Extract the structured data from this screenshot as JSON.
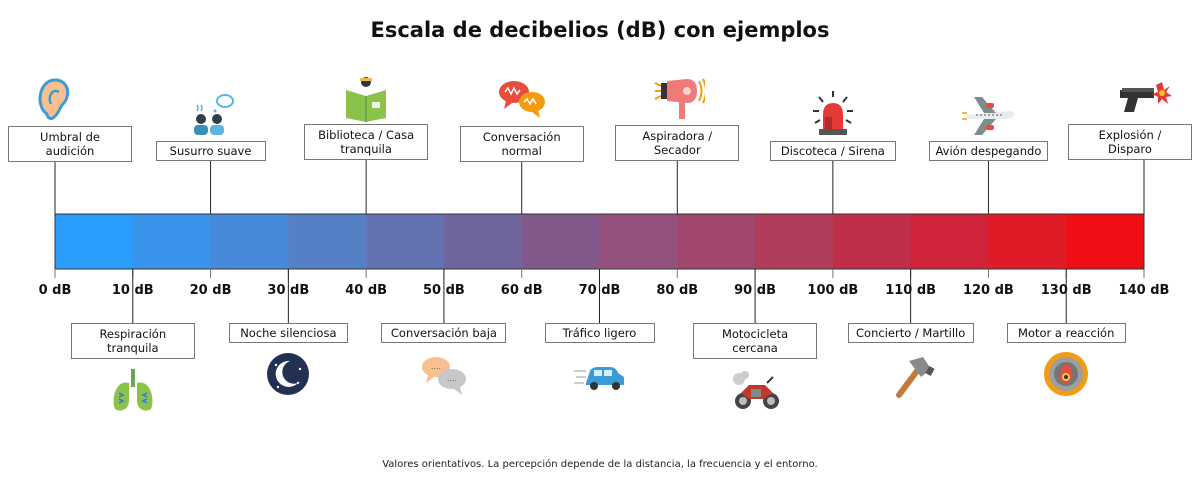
{
  "title": "Escala de decibelios (dB) con ejemplos",
  "footnote": "Valores orientativos. La percepción depende de la distancia, la frecuencia y el entorno.",
  "unit": "dB",
  "scale": {
    "min": 0,
    "max": 140,
    "step": 10,
    "segment_colors": [
      "#2a9dff",
      "#3993ea",
      "#4789da",
      "#5580c6",
      "#6372b3",
      "#70659c",
      "#82598a",
      "#94517c",
      "#a1476d",
      "#b23c5c",
      "#bf2f4a",
      "#cf243a",
      "#df1b27",
      "#ef0e15"
    ],
    "tick_labels": [
      "0 dB",
      "10 dB",
      "20 dB",
      "30 dB",
      "40 dB",
      "50 dB",
      "60 dB",
      "70 dB",
      "80 dB",
      "90 dB",
      "100 dB",
      "110 dB",
      "120 dB",
      "130 dB",
      "140 dB"
    ]
  },
  "examples": [
    {
      "db": 0,
      "label": "Umbral de audición",
      "lines": [
        "Umbral de",
        "audición"
      ],
      "side": "above",
      "icon": "ear-icon"
    },
    {
      "db": 10,
      "label": "Respiración tranquila",
      "lines": [
        "Respiración",
        "tranquila"
      ],
      "side": "below",
      "icon": "lungs-icon"
    },
    {
      "db": 20,
      "label": "Susurro suave",
      "lines": [
        "Susurro suave"
      ],
      "side": "above",
      "icon": "whisper-people-icon"
    },
    {
      "db": 30,
      "label": "Noche silenciosa",
      "lines": [
        "Noche silenciosa"
      ],
      "side": "below",
      "icon": "moon-night-icon"
    },
    {
      "db": 40,
      "label": "Biblioteca / Casa tranquila",
      "lines": [
        "Biblioteca / Casa",
        "tranquila"
      ],
      "side": "above",
      "icon": "book-reading-icon"
    },
    {
      "db": 50,
      "label": "Conversación baja",
      "lines": [
        "Conversación baja"
      ],
      "side": "below",
      "icon": "chat-bubbles-quiet-icon"
    },
    {
      "db": 60,
      "label": "Conversación normal",
      "lines": [
        "Conversación",
        "normal"
      ],
      "side": "above",
      "icon": "chat-bubbles-loud-icon"
    },
    {
      "db": 70,
      "label": "Tráfico ligero",
      "lines": [
        "Tráfico ligero"
      ],
      "side": "below",
      "icon": "car-icon"
    },
    {
      "db": 80,
      "label": "Aspiradora / Secador",
      "lines": [
        "Aspiradora /",
        "Secador"
      ],
      "side": "above",
      "icon": "hair-dryer-icon"
    },
    {
      "db": 90,
      "label": "Motocicleta cercana",
      "lines": [
        "Motocicleta",
        "cercana"
      ],
      "side": "below",
      "icon": "motorcycle-icon"
    },
    {
      "db": 100,
      "label": "Discoteca / Sirena",
      "lines": [
        "Discoteca / Sirena"
      ],
      "side": "above",
      "icon": "siren-icon"
    },
    {
      "db": 110,
      "label": "Concierto / Martillo",
      "lines": [
        "Concierto / Martillo"
      ],
      "side": "below",
      "icon": "hammer-icon"
    },
    {
      "db": 120,
      "label": "Avión despegando",
      "lines": [
        "Avión despegando"
      ],
      "side": "above",
      "icon": "airplane-icon"
    },
    {
      "db": 130,
      "label": "Motor a reacción",
      "lines": [
        "Motor a reacción"
      ],
      "side": "below",
      "icon": "jet-engine-icon"
    },
    {
      "db": 140,
      "label": "Explosión / Disparo",
      "lines": [
        "Explosión /",
        "Disparo"
      ],
      "side": "above",
      "icon": "gun-explosion-icon"
    }
  ]
}
